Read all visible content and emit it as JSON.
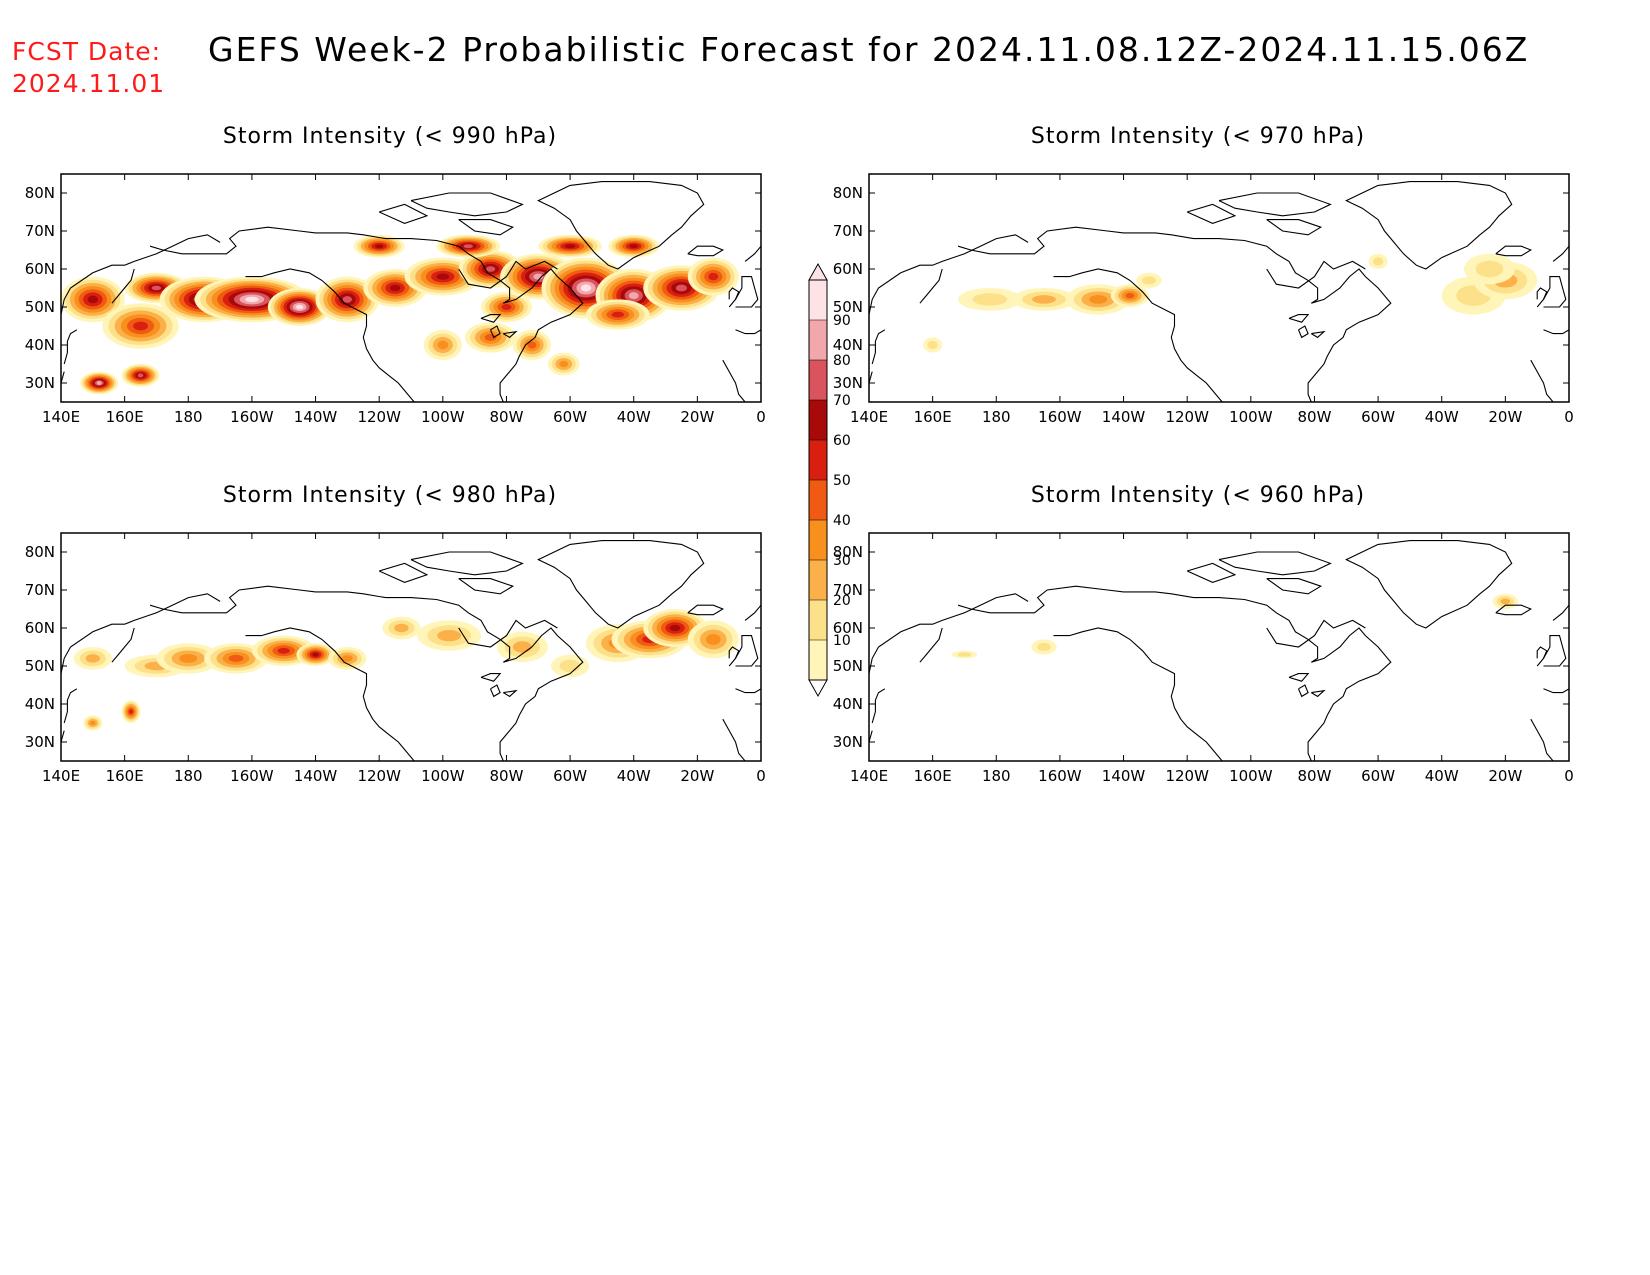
{
  "header": {
    "fcst_label": "FCST Date:",
    "fcst_date": "2024.11.01",
    "title": "GEFS Week-2 Probabilistic Forecast for 2024.11.08.12Z-2024.11.15.06Z"
  },
  "axes": {
    "x_ticks": [
      "140E",
      "160E",
      "180",
      "160W",
      "140W",
      "120W",
      "100W",
      "80W",
      "60W",
      "40W",
      "20W",
      "0"
    ],
    "y_ticks": [
      "80N",
      "70N",
      "60N",
      "50N",
      "40N",
      "30N"
    ]
  },
  "panels": [
    {
      "id": "p990",
      "title": "Storm Intensity (< 990 hPa)",
      "intensity": 1.0
    },
    {
      "id": "p970",
      "title": "Storm Intensity (< 970 hPa)",
      "intensity": 0.38
    },
    {
      "id": "p980",
      "title": "Storm Intensity (< 980 hPa)",
      "intensity": 0.65
    },
    {
      "id": "p960",
      "title": "Storm Intensity (< 960 hPa)",
      "intensity": 0.15
    }
  ],
  "colorbar": {
    "labels": [
      "10",
      "20",
      "30",
      "40",
      "50",
      "60",
      "70",
      "80",
      "90"
    ],
    "colors": [
      "#fff5b8",
      "#fde18a",
      "#fbb04a",
      "#f7901d",
      "#f15a12",
      "#d91f10",
      "#a80a0a",
      "#d9545c",
      "#f2a7ad",
      "#fde3e6"
    ]
  }
}
